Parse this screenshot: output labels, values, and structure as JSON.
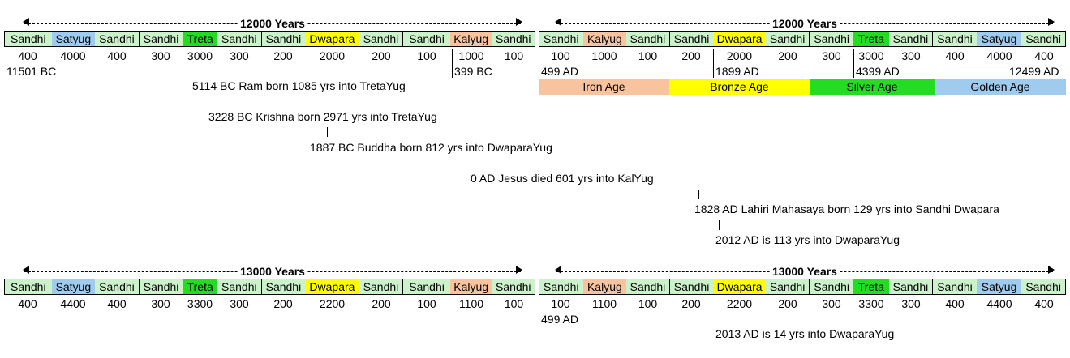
{
  "colors": {
    "sandhi": "#ccf2cc",
    "satyug": "#9fcbee",
    "treta": "#22dd22",
    "dwapara": "#ffff00",
    "kalyug": "#f9c39e",
    "iron": "#f9c39e",
    "bronze": "#ffff00",
    "silver": "#22dd22",
    "golden": "#9fcbee"
  },
  "cycle1": {
    "left_header": "12000 Years",
    "right_header": "12000 Years",
    "left_cells": [
      "Sandhi",
      "Satyug",
      "Sandhi",
      "Sandhi",
      "Treta",
      "Sandhi",
      "Sandhi",
      "Dwapara",
      "Sandhi",
      "Sandhi",
      "Kalyug",
      "Sandhi"
    ],
    "right_cells": [
      "Sandhi",
      "Kalyug",
      "Sandhi",
      "Sandhi",
      "Dwapara",
      "Sandhi",
      "Sandhi",
      "Treta",
      "Sandhi",
      "Sandhi",
      "Satyug",
      "Sandhi"
    ],
    "left_numbers": [
      "400",
      "4000",
      "400",
      "300",
      "3000",
      "300",
      "200",
      "2000",
      "200",
      "100",
      "1000",
      "100"
    ],
    "right_numbers": [
      "100",
      "1000",
      "100",
      "200",
      "2000",
      "200",
      "300",
      "3000",
      "300",
      "400",
      "4000",
      "400"
    ],
    "dates": {
      "bc_11501": "11501 BC",
      "bc_399": "399 BC",
      "ad_499": "499 AD",
      "ad_1899": "1899 AD",
      "ad_4399": "4399 AD",
      "ad_12499": "12499 AD"
    },
    "ages": [
      "Iron Age",
      "Bronze Age",
      "Silver Age",
      "Golden Age"
    ]
  },
  "events": [
    "5114 BC Ram born 1085 yrs into TretaYug",
    "3228 BC Krishna born 2971 yrs into TretaYug",
    "1887 BC Buddha born 812 yrs into DwaparaYug",
    "0 AD Jesus died 601 yrs into KalYug",
    "1828 AD Lahiri Mahasaya born 129 yrs into Sandhi Dwapara",
    "2012 AD is 113 yrs into DwaparaYug"
  ],
  "cycle2": {
    "left_header": "13000 Years",
    "right_header": "13000 Years",
    "left_cells": [
      "Sandhi",
      "Satyug",
      "Sandhi",
      "Sandhi",
      "Treta",
      "Sandhi",
      "Sandhi",
      "Dwapara",
      "Sandhi",
      "Sandhi",
      "Kalyug",
      "Sandhi"
    ],
    "right_cells": [
      "Sandhi",
      "Kalyug",
      "Sandhi",
      "Sandhi",
      "Dwapara",
      "Sandhi",
      "Sandhi",
      "Treta",
      "Sandhi",
      "Sandhi",
      "Satyug",
      "Sandhi"
    ],
    "left_numbers": [
      "400",
      "4400",
      "400",
      "300",
      "3300",
      "300",
      "200",
      "2200",
      "200",
      "100",
      "1100",
      "100"
    ],
    "right_numbers": [
      "100",
      "1100",
      "100",
      "200",
      "2200",
      "200",
      "300",
      "3300",
      "300",
      "400",
      "4400",
      "400"
    ],
    "date_499": "499 AD",
    "note_2013": "2013 AD is 14 yrs into DwaparaYug"
  }
}
